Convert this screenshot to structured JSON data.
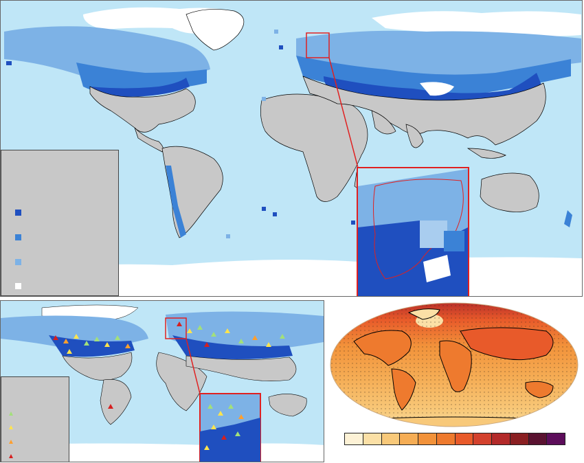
{
  "panels": {
    "top": {
      "description_visible": "",
      "legend_swatches": [
        {
          "name": "dark-blue",
          "color": "#1f4fbf"
        },
        {
          "name": "medium-blue",
          "color": "#3b82d6"
        },
        {
          "name": "light-blue",
          "color": "#7db2e6"
        },
        {
          "name": "white",
          "color": "#ffffff"
        }
      ]
    },
    "bottom_left": {
      "legend_triangles": [
        {
          "name": "green",
          "color": "#a3e07a"
        },
        {
          "name": "yellow",
          "color": "#ffe44d"
        },
        {
          "name": "orange",
          "color": "#ff9f2e"
        },
        {
          "name": "red",
          "color": "#d61f1f"
        }
      ]
    },
    "bottom_right": {
      "colorbar": [
        "#fdf2d6",
        "#fbe0a6",
        "#f8c97a",
        "#f5ad55",
        "#f2923a",
        "#ee7a2e",
        "#e85a2a",
        "#d3412d",
        "#b32a2a",
        "#8a1f22",
        "#5a1230",
        "#5c0d5a"
      ]
    }
  },
  "colors": {
    "ocean": "#bfe6f7",
    "land": "#c8c8c8",
    "ice": "#ffffff",
    "inset_border": "#e02020"
  }
}
